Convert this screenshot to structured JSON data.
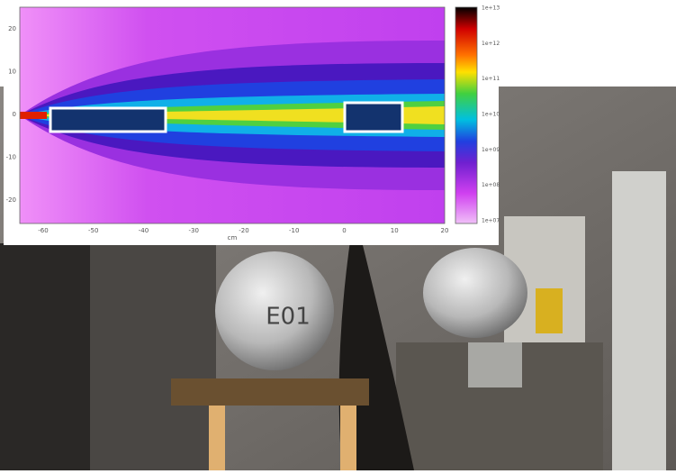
{
  "heatmap": {
    "x_axis_label": "cm",
    "x_ticks": [
      "-60",
      "-50",
      "-40",
      "-30",
      "-20",
      "-10",
      "0",
      "10",
      "20"
    ],
    "y_ticks": [
      "20",
      "10",
      "0",
      "-10",
      "-20"
    ],
    "colorbar_labels": [
      "1e+13",
      "1e+12",
      "1e+11",
      "1e+10",
      "1e+09",
      "1e+08",
      "1e+07"
    ]
  },
  "photo": {
    "detector_label": "E01"
  }
}
